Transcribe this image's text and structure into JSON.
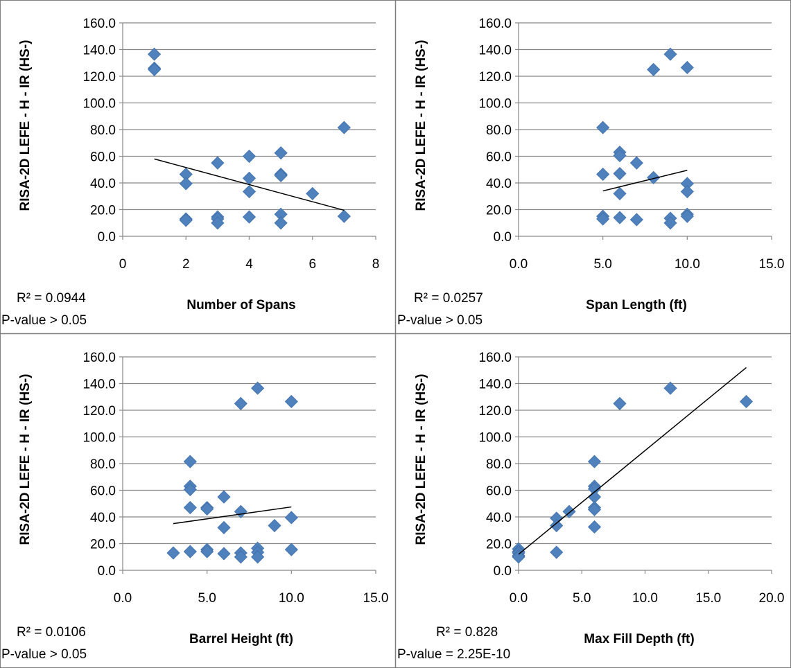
{
  "colors": {
    "marker": "#4f81bd",
    "trendline": "#000000",
    "gridline": "#878787",
    "border": "#7f7f7f"
  },
  "chart_data": [
    {
      "type": "scatter",
      "xlabel": "Number of Spans",
      "ylabel": "RISA-2D LEFE - H - IR (HS-)",
      "xlim": [
        0,
        8
      ],
      "ylim": [
        0,
        160
      ],
      "x_ticks": [
        "0",
        "2",
        "4",
        "6",
        "8"
      ],
      "y_ticks": [
        "0.0",
        "20.0",
        "40.0",
        "60.0",
        "80.0",
        "100.0",
        "120.0",
        "140.0",
        "160.0"
      ],
      "grid": "horizontal",
      "x": [
        1,
        1,
        1,
        2,
        2,
        2,
        2,
        3,
        3,
        3,
        3,
        4,
        4,
        4,
        4,
        5,
        5,
        5,
        5,
        5,
        6,
        7,
        7
      ],
      "y": [
        136.5,
        126,
        125,
        46.5,
        39.5,
        13,
        12,
        55,
        14.5,
        13,
        10,
        60,
        43.5,
        33.5,
        14.5,
        62.5,
        46.5,
        45.5,
        16.5,
        10,
        32,
        81.5,
        15
      ],
      "trendline": {
        "x": [
          1,
          7
        ],
        "y": [
          58,
          19.5
        ]
      },
      "r_squared": "R² = 0.0944",
      "p_value": "P-value > 0.05"
    },
    {
      "type": "scatter",
      "xlabel": "Span Length (ft)",
      "ylabel": "RISA-2D LEFE - H - IR (HS-)",
      "xlim": [
        0,
        15
      ],
      "ylim": [
        0,
        160
      ],
      "x_ticks": [
        "0.0",
        "5.0",
        "10.0",
        "15.0"
      ],
      "y_ticks": [
        "0.0",
        "20.0",
        "40.0",
        "60.0",
        "80.0",
        "100.0",
        "120.0",
        "140.0",
        "160.0"
      ],
      "grid": "horizontal",
      "x": [
        5,
        5,
        5,
        5,
        6,
        6,
        6,
        6,
        6,
        7,
        7,
        8,
        8,
        9,
        9,
        9,
        10,
        10,
        10,
        10,
        10
      ],
      "y": [
        81.5,
        46.5,
        15,
        13,
        63,
        60.5,
        47,
        32,
        14,
        55,
        12.5,
        125,
        44,
        136.5,
        13.5,
        10,
        126.5,
        39.5,
        33.5,
        16.5,
        15
      ],
      "trendline": {
        "x": [
          5,
          10
        ],
        "y": [
          34,
          49.5
        ]
      },
      "r_squared": "R² = 0.0257",
      "p_value": "P-value > 0.05"
    },
    {
      "type": "scatter",
      "xlabel": "Barrel Height (ft)",
      "ylabel": "RISA-2D LEFE - H - IR (HS-)",
      "xlim": [
        0,
        15
      ],
      "ylim": [
        0,
        160
      ],
      "x_ticks": [
        "0.0",
        "5.0",
        "10.0",
        "15.0"
      ],
      "y_ticks": [
        "0.0",
        "20.0",
        "40.0",
        "60.0",
        "80.0",
        "100.0",
        "120.0",
        "140.0",
        "160.0"
      ],
      "grid": "horizontal",
      "x": [
        3,
        4,
        4,
        4,
        4,
        4,
        5,
        5,
        5,
        5,
        6,
        6,
        6,
        7,
        7,
        7,
        7,
        8,
        8,
        8,
        8,
        9,
        10,
        10,
        10
      ],
      "y": [
        13,
        81.5,
        63,
        60.5,
        47,
        14,
        47,
        46,
        15.5,
        14,
        55,
        32,
        12.5,
        125,
        44,
        13,
        10,
        136.5,
        16.5,
        13.5,
        10,
        33.5,
        126.5,
        39.5,
        15.5
      ],
      "trendline": {
        "x": [
          3,
          10
        ],
        "y": [
          35,
          47.5
        ]
      },
      "r_squared": "R² = 0.0106",
      "p_value": "P-value > 0.05"
    },
    {
      "type": "scatter",
      "xlabel": "Max Fill Depth (ft)",
      "ylabel": "RISA-2D LEFE - H - IR (HS-)",
      "xlim": [
        0,
        20
      ],
      "ylim": [
        0,
        160
      ],
      "x_ticks": [
        "0.0",
        "5.0",
        "10.0",
        "15.0",
        "20.0"
      ],
      "y_ticks": [
        "0.0",
        "20.0",
        "40.0",
        "60.0",
        "80.0",
        "100.0",
        "120.0",
        "140.0",
        "160.0"
      ],
      "grid": "horizontal",
      "x": [
        0,
        0,
        0,
        0,
        0,
        3,
        3,
        3,
        4,
        6,
        6,
        6,
        6,
        6,
        6,
        6,
        8,
        12,
        18
      ],
      "y": [
        16,
        14,
        13,
        11,
        10,
        39,
        33.5,
        13.5,
        44,
        81.5,
        63,
        61,
        55,
        47,
        45.5,
        32.5,
        125,
        136.5,
        126.5
      ],
      "trendline": {
        "x": [
          0,
          18
        ],
        "y": [
          12,
          152
        ]
      },
      "r_squared": "R² = 0.828",
      "p_value": "P-value = 2.25E-10"
    }
  ]
}
